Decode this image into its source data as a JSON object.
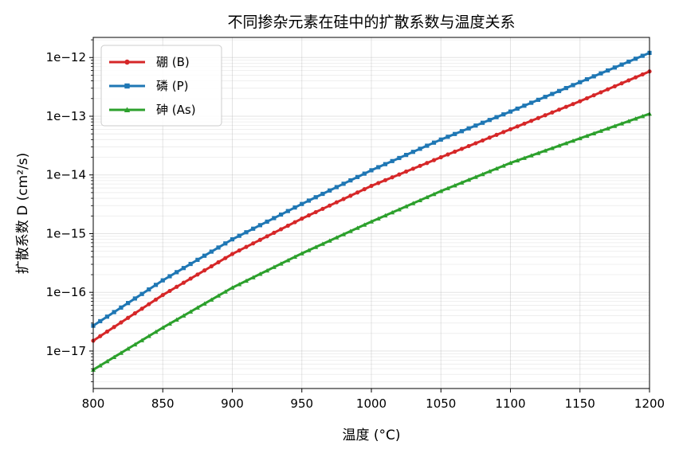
{
  "chart_data": {
    "type": "line",
    "title": "不同掺杂元素在硅中的扩散系数与温度关系",
    "xlabel": "温度 (°C)",
    "ylabel": "扩散系数 D (cm²/s)",
    "xlim": [
      800,
      1200
    ],
    "ylim": [
      2.3e-18,
      2.2e-12
    ],
    "yscale": "log",
    "grid": true,
    "legend_position": "top-left",
    "x_ticks": [
      800,
      850,
      900,
      950,
      1000,
      1050,
      1100,
      1150,
      1200
    ],
    "y_ticks": [
      {
        "value": 1e-17,
        "label": "1e−17"
      },
      {
        "value": 1e-16,
        "label": "1e−16"
      },
      {
        "value": 1e-15,
        "label": "1e−15"
      },
      {
        "value": 1e-14,
        "label": "1e−14"
      },
      {
        "value": 1e-13,
        "label": "1e−13"
      },
      {
        "value": 1e-12,
        "label": "1e−12"
      }
    ],
    "x": [
      800,
      850,
      900,
      950,
      1000,
      1050,
      1100,
      1150,
      1200
    ],
    "series": [
      {
        "name": "硼 (B)",
        "color": "#d62728",
        "marker": "circle",
        "values": [
          1.5e-17,
          9e-17,
          4.5e-16,
          1.8e-15,
          6.5e-15,
          2e-14,
          6e-14,
          1.8e-13,
          5.8e-13
        ]
      },
      {
        "name": "磷 (P)",
        "color": "#1f77b4",
        "marker": "square",
        "values": [
          2.7e-17,
          1.6e-16,
          8e-16,
          3.2e-15,
          1.2e-14,
          4e-14,
          1.2e-13,
          3.8e-13,
          1.2e-12
        ]
      },
      {
        "name": "砷 (As)",
        "color": "#2ca02c",
        "marker": "triangle",
        "values": [
          4.8e-18,
          2.5e-17,
          1.2e-16,
          4.6e-16,
          1.6e-15,
          5.3e-15,
          1.6e-14,
          4.2e-14,
          1.1e-13
        ]
      }
    ]
  }
}
